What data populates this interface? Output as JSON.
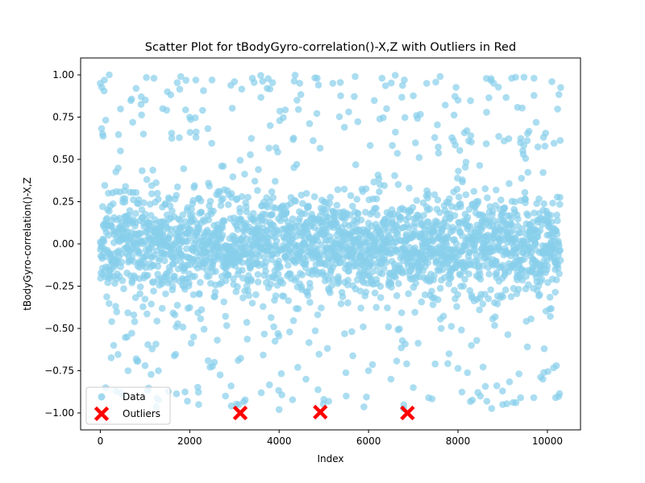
{
  "chart_data": {
    "type": "scatter",
    "title": "Scatter Plot for tBodyGyro-correlation()-X,Z with Outliers in Red",
    "xlabel": "Index",
    "ylabel": "tBodyGyro-correlation()-X,Z",
    "xlim": [
      -440,
      10740
    ],
    "ylim": [
      -1.1,
      1.1
    ],
    "xticks": [
      0,
      2000,
      4000,
      6000,
      8000,
      10000
    ],
    "xtick_labels": [
      "0",
      "2000",
      "4000",
      "6000",
      "8000",
      "10000"
    ],
    "yticks": [
      -1.0,
      -0.75,
      -0.5,
      -0.25,
      0.0,
      0.25,
      0.5,
      0.75,
      1.0
    ],
    "ytick_labels": [
      "−1.00",
      "−0.75",
      "−0.50",
      "−0.25",
      "0.00",
      "0.25",
      "0.50",
      "0.75",
      "1.00"
    ],
    "grid": false,
    "legend_position": "lower-left",
    "series": [
      {
        "name": "Data",
        "color": "#87CEEB",
        "marker": "circle",
        "n_points": 10299,
        "x_range": [
          0,
          10298
        ],
        "y_range": [
          -0.98,
          1.0
        ],
        "bulk_range": [
          -0.55,
          0.55
        ],
        "sampled_points": [
          [
            0,
            0.95
          ],
          [
            50,
            0.65
          ],
          [
            120,
            -0.85
          ],
          [
            200,
            1.0
          ],
          [
            300,
            -0.6
          ],
          [
            450,
            0.55
          ],
          [
            600,
            -0.55
          ],
          [
            800,
            0.92
          ],
          [
            1000,
            -0.72
          ],
          [
            1200,
            0.98
          ],
          [
            1300,
            -0.75
          ],
          [
            1500,
            0.9
          ],
          [
            1800,
            0.99
          ],
          [
            1950,
            -0.93
          ],
          [
            2000,
            0.75
          ],
          [
            2200,
            -0.95
          ],
          [
            2500,
            0.97
          ],
          [
            2800,
            -0.9
          ],
          [
            3000,
            0.96
          ],
          [
            3100,
            -0.95
          ],
          [
            3400,
            0.98
          ],
          [
            3600,
            -0.88
          ],
          [
            3800,
            0.7
          ],
          [
            4000,
            -0.98
          ],
          [
            4400,
            0.85
          ],
          [
            4600,
            -0.8
          ],
          [
            4850,
            0.98
          ],
          [
            5000,
            -0.92
          ],
          [
            5200,
            0.95
          ],
          [
            5500,
            -0.9
          ],
          [
            5700,
            0.99
          ],
          [
            6000,
            -0.75
          ],
          [
            6300,
            0.98
          ],
          [
            6500,
            -0.8
          ],
          [
            6800,
            0.97
          ],
          [
            7000,
            -0.85
          ],
          [
            7300,
            0.95
          ],
          [
            7600,
            0.99
          ],
          [
            7800,
            -0.65
          ],
          [
            8000,
            0.85
          ],
          [
            8300,
            -0.6
          ],
          [
            8500,
            -0.9
          ],
          [
            8800,
            0.95
          ],
          [
            9000,
            -0.95
          ],
          [
            9200,
            0.98
          ],
          [
            9400,
            -0.91
          ],
          [
            9700,
            0.98
          ],
          [
            9900,
            -0.8
          ],
          [
            10100,
            0.96
          ],
          [
            10200,
            -0.72
          ]
        ]
      },
      {
        "name": "Outliers",
        "color": "#FF0000",
        "marker": "X",
        "points": [
          [
            3130,
            -1.0
          ],
          [
            4920,
            -0.995
          ],
          [
            6870,
            -1.0
          ]
        ]
      }
    ]
  }
}
